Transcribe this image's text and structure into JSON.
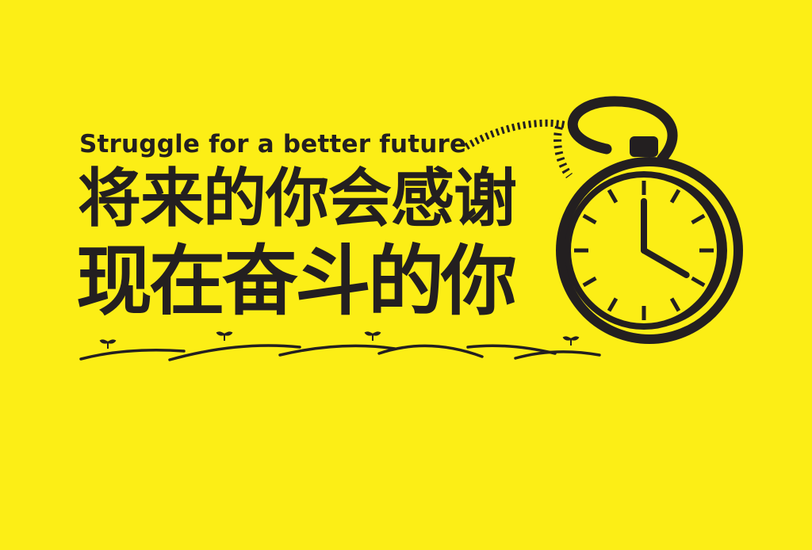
{
  "colors": {
    "background": "#fcee16",
    "ink": "#231f20"
  },
  "poster": {
    "tagline": "Struggle for a better future",
    "headline_line1": "将来的你会感谢",
    "headline_line2": "现在奋斗的你"
  },
  "clock": {
    "icon": "pocket-watch-icon",
    "hour": 4,
    "minute": 0
  }
}
